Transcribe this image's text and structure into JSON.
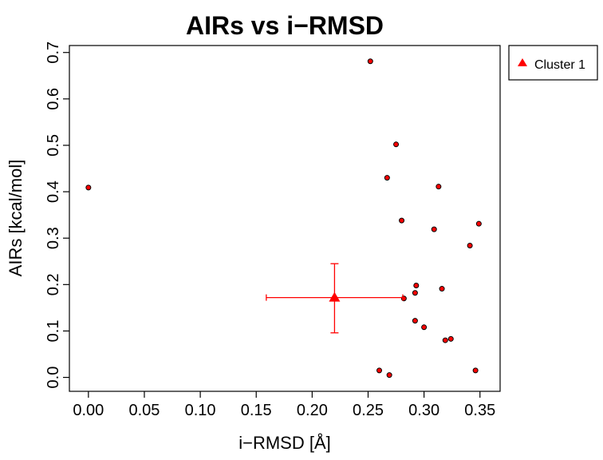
{
  "chart_data": {
    "type": "scatter",
    "title": "AIRs vs i−RMSD",
    "xlabel": "i−RMSD [Å]",
    "ylabel": "AIRs [kcal/mol]",
    "xlim": [
      -0.017,
      0.368
    ],
    "ylim": [
      -0.03,
      0.715
    ],
    "x_ticks": [
      "0.00",
      "0.05",
      "0.10",
      "0.15",
      "0.20",
      "0.25",
      "0.30",
      "0.35"
    ],
    "x_tick_values": [
      0.0,
      0.05,
      0.1,
      0.15,
      0.2,
      0.25,
      0.3,
      0.35
    ],
    "y_ticks": [
      "0.0",
      "0.1",
      "0.2",
      "0.3",
      "0.4",
      "0.5",
      "0.6",
      "0.7"
    ],
    "y_tick_values": [
      0.0,
      0.1,
      0.2,
      0.3,
      0.4,
      0.5,
      0.6,
      0.7
    ],
    "grid": false,
    "legend_position": "outside-top-right",
    "points": {
      "color": "#ff0000",
      "stroke": "#000000",
      "x": [
        0.0,
        0.252,
        0.275,
        0.267,
        0.313,
        0.28,
        0.309,
        0.349,
        0.341,
        0.293,
        0.316,
        0.292,
        0.282,
        0.292,
        0.3,
        0.319,
        0.324,
        0.26,
        0.269,
        0.346
      ],
      "y": [
        0.409,
        0.681,
        0.502,
        0.43,
        0.411,
        0.338,
        0.319,
        0.331,
        0.284,
        0.198,
        0.191,
        0.182,
        0.17,
        0.122,
        0.108,
        0.08,
        0.083,
        0.015,
        0.005,
        0.015
      ]
    },
    "clusters": [
      {
        "name": "Cluster 1",
        "color": "#ff0000",
        "marker": "triangle",
        "x": 0.22,
        "y": 0.172,
        "x_err_low": 0.159,
        "x_err_high": 0.281,
        "y_err_low": 0.096,
        "y_err_high": 0.245
      }
    ]
  }
}
